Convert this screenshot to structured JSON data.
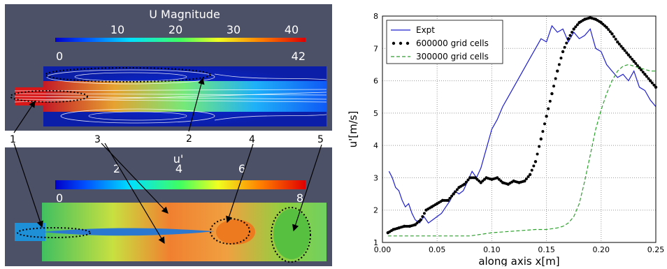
{
  "left_figure": {
    "top_panel": {
      "colorbar_title": "U Magnitude",
      "ticks": [
        "10",
        "20",
        "30",
        "40"
      ],
      "range_min": "0",
      "range_max": "42"
    },
    "bottom_panel": {
      "colorbar_title": "u'",
      "ticks": [
        "2",
        "4",
        "6"
      ],
      "range_min": "0",
      "range_max": "8"
    },
    "callouts": [
      "1",
      "2",
      "3",
      "4",
      "5"
    ]
  },
  "chart_data": {
    "type": "line",
    "xlabel": "along axis x[m]",
    "ylabel": "u'[m/s]",
    "xlim": [
      0.0,
      0.25
    ],
    "ylim": [
      1,
      8
    ],
    "x_ticks": [
      "0.00",
      "0.05",
      "0.10",
      "0.15",
      "0.20",
      "0.25"
    ],
    "y_ticks": [
      "1",
      "2",
      "3",
      "4",
      "5",
      "6",
      "7",
      "8"
    ],
    "grid": true,
    "legend_position": "top-left",
    "series": [
      {
        "name": "Expt",
        "style": "solid",
        "color": "#1f1fcf",
        "x": [
          0.006,
          0.009,
          0.012,
          0.015,
          0.018,
          0.021,
          0.024,
          0.027,
          0.03,
          0.034,
          0.038,
          0.042,
          0.046,
          0.05,
          0.054,
          0.058,
          0.062,
          0.066,
          0.07,
          0.074,
          0.078,
          0.082,
          0.086,
          0.09,
          0.095,
          0.1,
          0.105,
          0.11,
          0.115,
          0.12,
          0.125,
          0.13,
          0.135,
          0.14,
          0.145,
          0.15,
          0.155,
          0.16,
          0.165,
          0.17,
          0.175,
          0.18,
          0.185,
          0.19,
          0.195,
          0.2,
          0.205,
          0.21,
          0.215,
          0.22,
          0.225,
          0.23,
          0.235,
          0.24,
          0.245,
          0.25
        ],
        "y": [
          3.2,
          3.0,
          2.7,
          2.6,
          2.3,
          2.1,
          2.2,
          1.9,
          1.7,
          1.6,
          1.8,
          1.6,
          1.7,
          1.8,
          1.9,
          2.1,
          2.3,
          2.6,
          2.5,
          2.6,
          2.9,
          3.2,
          3.0,
          3.3,
          3.9,
          4.5,
          4.8,
          5.2,
          5.5,
          5.8,
          6.1,
          6.4,
          6.7,
          7.0,
          7.3,
          7.2,
          7.7,
          7.5,
          7.6,
          7.2,
          7.5,
          7.3,
          7.4,
          7.6,
          7.0,
          6.9,
          6.5,
          6.3,
          6.1,
          6.2,
          6.0,
          6.3,
          5.8,
          5.7,
          5.4,
          5.2
        ]
      },
      {
        "name": "600000 grid cells",
        "style": "dotted",
        "color": "#000000",
        "x": [
          0.005,
          0.01,
          0.015,
          0.02,
          0.025,
          0.03,
          0.035,
          0.04,
          0.045,
          0.05,
          0.055,
          0.06,
          0.065,
          0.07,
          0.075,
          0.08,
          0.085,
          0.09,
          0.095,
          0.1,
          0.105,
          0.11,
          0.115,
          0.12,
          0.125,
          0.13,
          0.135,
          0.14,
          0.145,
          0.15,
          0.155,
          0.16,
          0.165,
          0.17,
          0.175,
          0.18,
          0.185,
          0.19,
          0.195,
          0.2,
          0.205,
          0.21,
          0.215,
          0.22,
          0.225,
          0.23,
          0.235,
          0.24,
          0.245,
          0.25
        ],
        "y": [
          1.3,
          1.4,
          1.45,
          1.5,
          1.5,
          1.55,
          1.7,
          2.0,
          2.1,
          2.2,
          2.3,
          2.3,
          2.5,
          2.7,
          2.8,
          3.0,
          3.0,
          2.85,
          3.0,
          2.95,
          3.0,
          2.85,
          2.8,
          2.9,
          2.85,
          2.9,
          3.1,
          3.5,
          4.2,
          4.9,
          5.6,
          6.3,
          6.9,
          7.3,
          7.6,
          7.8,
          7.9,
          7.95,
          7.9,
          7.8,
          7.65,
          7.45,
          7.2,
          7.0,
          6.8,
          6.6,
          6.4,
          6.2,
          6.0,
          5.8
        ]
      },
      {
        "name": "300000 grid cells",
        "style": "dashed",
        "color": "#2ca02c",
        "x": [
          0.005,
          0.02,
          0.04,
          0.06,
          0.08,
          0.1,
          0.12,
          0.14,
          0.15,
          0.16,
          0.165,
          0.17,
          0.175,
          0.18,
          0.185,
          0.19,
          0.195,
          0.2,
          0.205,
          0.21,
          0.215,
          0.22,
          0.225,
          0.23,
          0.235,
          0.24,
          0.245,
          0.25
        ],
        "y": [
          1.2,
          1.2,
          1.2,
          1.2,
          1.2,
          1.3,
          1.35,
          1.4,
          1.4,
          1.45,
          1.5,
          1.6,
          1.8,
          2.2,
          2.9,
          3.7,
          4.5,
          5.1,
          5.6,
          6.0,
          6.3,
          6.45,
          6.5,
          6.45,
          6.4,
          6.35,
          6.3,
          6.3
        ]
      }
    ]
  }
}
